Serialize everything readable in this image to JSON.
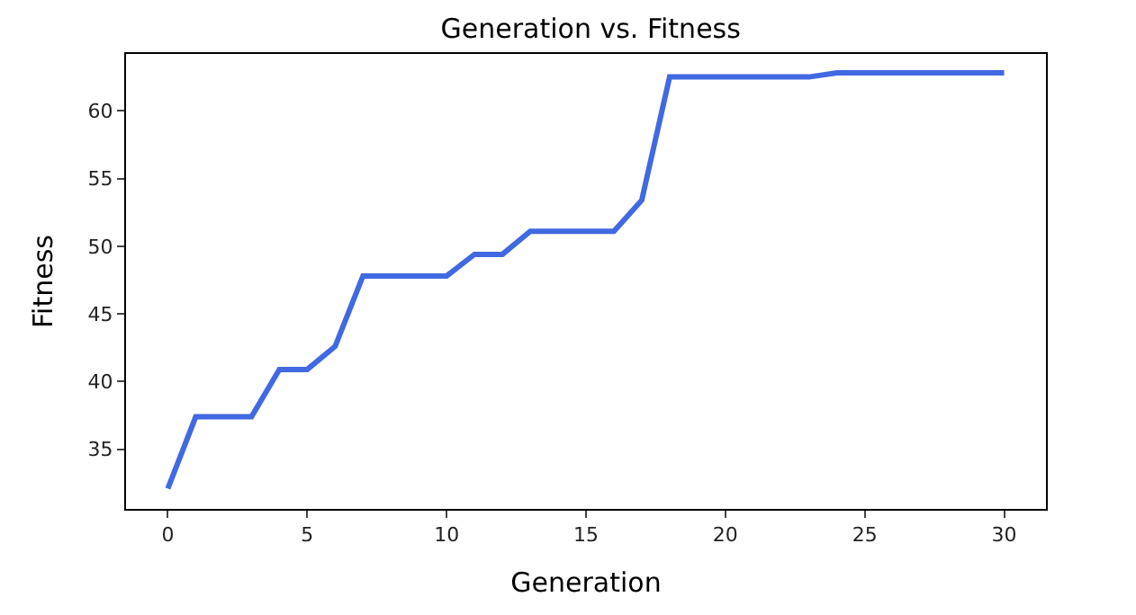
{
  "chart_data": {
    "type": "line",
    "title": "Generation vs. Fitness",
    "xlabel": "Generation",
    "ylabel": "Fitness",
    "x": [
      0,
      1,
      2,
      3,
      4,
      5,
      6,
      7,
      8,
      9,
      10,
      11,
      12,
      13,
      14,
      15,
      16,
      17,
      18,
      19,
      20,
      21,
      22,
      23,
      24,
      25,
      26,
      27,
      28,
      29,
      30
    ],
    "series": [
      {
        "color": "#4169e1",
        "values": [
          32.1,
          37.4,
          37.4,
          37.4,
          40.9,
          40.9,
          42.6,
          47.8,
          47.8,
          47.8,
          47.8,
          49.4,
          49.4,
          51.1,
          51.1,
          51.1,
          51.1,
          53.4,
          62.5,
          62.5,
          62.5,
          62.5,
          62.5,
          62.5,
          62.8,
          62.8,
          62.8,
          62.8,
          62.8,
          62.8,
          62.8
        ]
      }
    ],
    "xlim": [
      -1.5,
      31.5
    ],
    "xticks": [
      0,
      5,
      10,
      15,
      20,
      25,
      30
    ],
    "ylim": [
      30.6,
      64.2
    ],
    "yticks": [
      35,
      40,
      45,
      50,
      55,
      60
    ],
    "marker": "none",
    "line_style": "solid"
  }
}
